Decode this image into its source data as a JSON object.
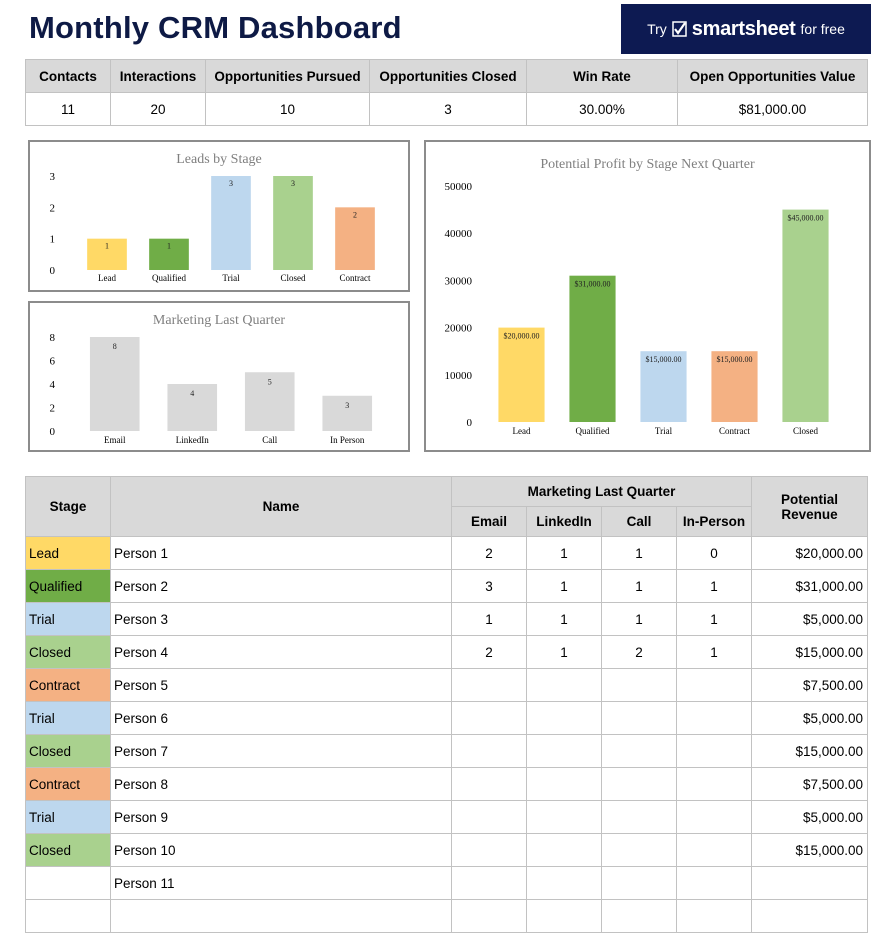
{
  "title": "Monthly CRM Dashboard",
  "promo": {
    "try": "Try",
    "brand": "smartsheet",
    "free": "for free"
  },
  "kpi": {
    "headers": [
      "Contacts",
      "Interactions",
      "Opportunities Pursued",
      "Opportunities Closed",
      "Win Rate",
      "Open Opportunities Value"
    ],
    "values": [
      "11",
      "20",
      "10",
      "3",
      "30.00%",
      "$81,000.00"
    ]
  },
  "colors": {
    "Lead": "#ffd966",
    "Qualified": "#70ad47",
    "Trial": "#bdd7ee",
    "Closed": "#a9d18e",
    "Contract": "#f4b183",
    "marketing": "#d9d9d9",
    "header_bg": "#d9d9d9",
    "title": "#0e1a45",
    "promo_bg": "#0d1a52"
  },
  "chart_data": [
    {
      "id": "leads",
      "type": "bar",
      "title": "Leads by Stage",
      "categories": [
        "Lead",
        "Qualified",
        "Trial",
        "Closed",
        "Contract"
      ],
      "values": [
        1,
        1,
        3,
        3,
        2
      ],
      "labels": [
        "1",
        "1",
        "3",
        "3",
        "2"
      ],
      "ylim": [
        0,
        3
      ],
      "yticks": [
        "0",
        "1",
        "2",
        "3"
      ],
      "grid": false,
      "legend": "none"
    },
    {
      "id": "marketing",
      "type": "bar",
      "title": "Marketing Last Quarter",
      "categories": [
        "Email",
        "LinkedIn",
        "Call",
        "In Person"
      ],
      "values": [
        8,
        4,
        5,
        3
      ],
      "labels": [
        "8",
        "4",
        "5",
        "3"
      ],
      "ylim": [
        0,
        8
      ],
      "yticks": [
        "0",
        "2",
        "4",
        "6",
        "8"
      ],
      "grid": false,
      "legend": "none"
    },
    {
      "id": "profit",
      "type": "bar",
      "title": "Potential Profit by Stage Next Quarter",
      "categories": [
        "Lead",
        "Qualified",
        "Trial",
        "Contract",
        "Closed"
      ],
      "values": [
        20000,
        31000,
        15000,
        15000,
        45000
      ],
      "labels": [
        "$20,000.00",
        "$31,000.00",
        "$15,000.00",
        "$15,000.00",
        "$45,000.00"
      ],
      "ylim": [
        0,
        50000
      ],
      "yticks": [
        "0",
        "10000",
        "20000",
        "30000",
        "40000",
        "50000"
      ],
      "grid": false,
      "legend": "none"
    }
  ],
  "crm": {
    "headers": {
      "stage": "Stage",
      "name": "Name",
      "marketing": "Marketing Last Quarter",
      "email": "Email",
      "linkedin": "LinkedIn",
      "call": "Call",
      "inperson": "In-Person",
      "revenue": "Potential Revenue"
    },
    "rows": [
      {
        "stage": "Lead",
        "name": "Person 1",
        "email": "2",
        "linkedin": "1",
        "call": "1",
        "inperson": "0",
        "revenue": "$20,000.00"
      },
      {
        "stage": "Qualified",
        "name": "Person 2",
        "email": "3",
        "linkedin": "1",
        "call": "1",
        "inperson": "1",
        "revenue": "$31,000.00"
      },
      {
        "stage": "Trial",
        "name": "Person 3",
        "email": "1",
        "linkedin": "1",
        "call": "1",
        "inperson": "1",
        "revenue": "$5,000.00"
      },
      {
        "stage": "Closed",
        "name": "Person 4",
        "email": "2",
        "linkedin": "1",
        "call": "2",
        "inperson": "1",
        "revenue": "$15,000.00"
      },
      {
        "stage": "Contract",
        "name": "Person 5",
        "email": "",
        "linkedin": "",
        "call": "",
        "inperson": "",
        "revenue": "$7,500.00"
      },
      {
        "stage": "Trial",
        "name": "Person 6",
        "email": "",
        "linkedin": "",
        "call": "",
        "inperson": "",
        "revenue": "$5,000.00"
      },
      {
        "stage": "Closed",
        "name": "Person 7",
        "email": "",
        "linkedin": "",
        "call": "",
        "inperson": "",
        "revenue": "$15,000.00"
      },
      {
        "stage": "Contract",
        "name": "Person 8",
        "email": "",
        "linkedin": "",
        "call": "",
        "inperson": "",
        "revenue": "$7,500.00"
      },
      {
        "stage": "Trial",
        "name": "Person 9",
        "email": "",
        "linkedin": "",
        "call": "",
        "inperson": "",
        "revenue": "$5,000.00"
      },
      {
        "stage": "Closed",
        "name": "Person 10",
        "email": "",
        "linkedin": "",
        "call": "",
        "inperson": "",
        "revenue": "$15,000.00"
      },
      {
        "stage": "",
        "name": "Person 11",
        "email": "",
        "linkedin": "",
        "call": "",
        "inperson": "",
        "revenue": ""
      },
      {
        "stage": "",
        "name": "",
        "email": "",
        "linkedin": "",
        "call": "",
        "inperson": "",
        "revenue": ""
      }
    ]
  }
}
